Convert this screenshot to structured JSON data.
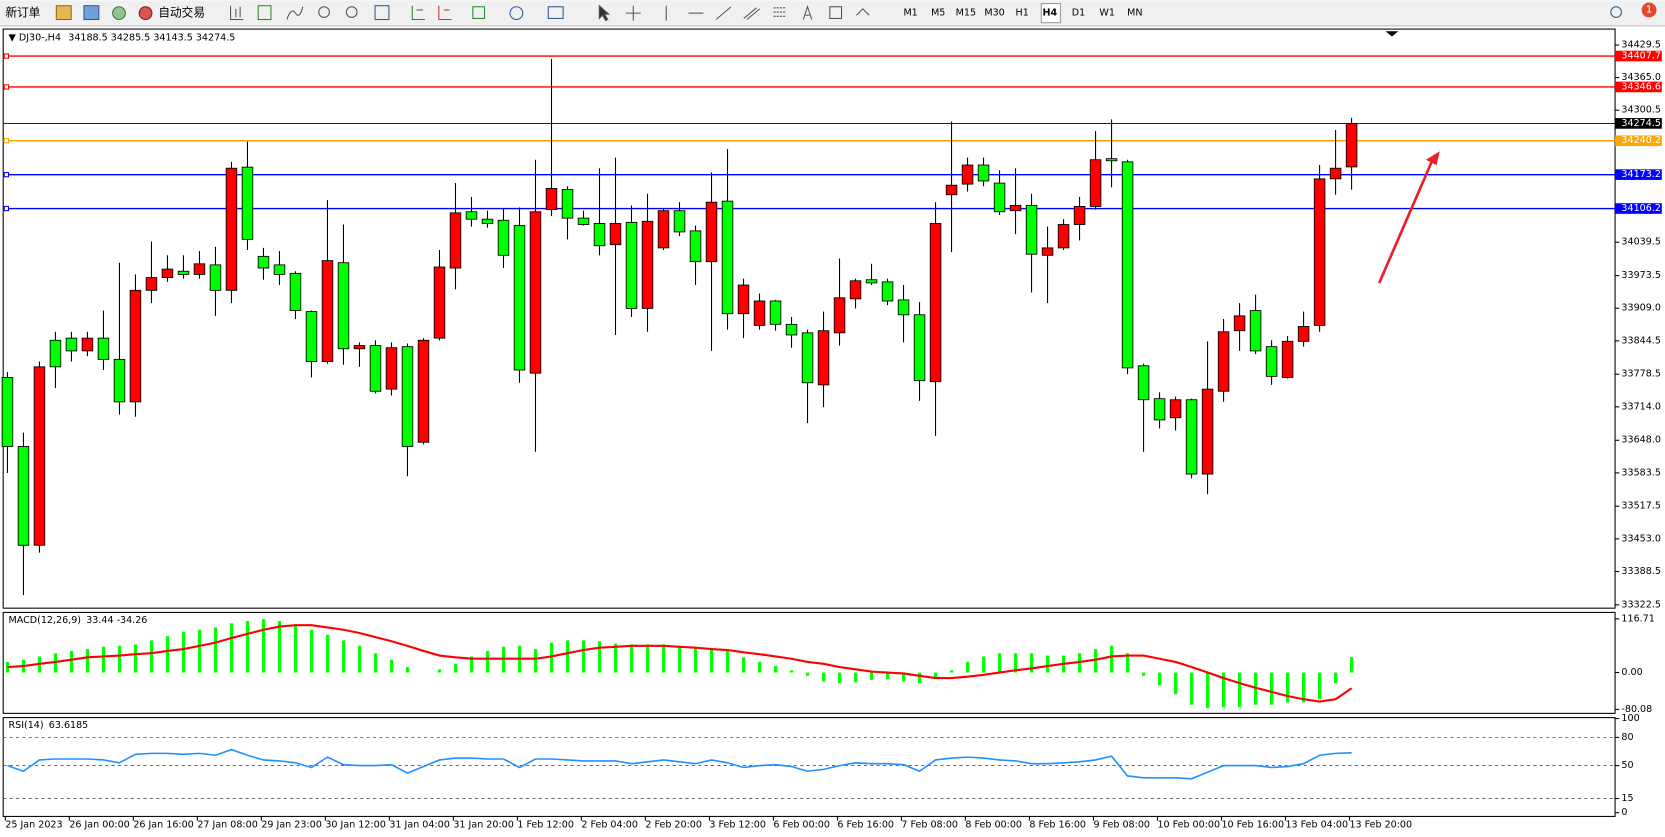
{
  "toolbar": {
    "new_order": "新订单",
    "auto_trading": "自动交易",
    "timeframes": [
      "M1",
      "M5",
      "M15",
      "M30",
      "H1",
      "H4",
      "D1",
      "W1",
      "MN"
    ],
    "active_timeframe": "H4",
    "notification_count": 1
  },
  "chart_data": [
    {
      "type": "candlestick",
      "title": "DJ30-,H4",
      "up_color": "#ff0000",
      "down_color": "#00ff00",
      "categories": [
        "25 Jan 2023",
        null,
        null,
        null,
        "26 Jan 00:00",
        null,
        null,
        null,
        "26 Jan 16:00",
        null,
        null,
        null,
        "27 Jan 08:00",
        null,
        null,
        null,
        "29 Jan 23:00",
        null,
        null,
        null,
        "30 Jan 12:00",
        null,
        null,
        null,
        "31 Jan 04:00",
        null,
        null,
        null,
        "31 Jan 20:00",
        null,
        null,
        null,
        "1 Feb 12:00",
        null,
        null,
        null,
        "2 Feb 04:00",
        null,
        null,
        null,
        "2 Feb 20:00",
        null,
        null,
        null,
        "3 Feb 12:00",
        null,
        null,
        null,
        "6 Feb 00:00",
        null,
        null,
        null,
        "6 Feb 16:00",
        null,
        null,
        null,
        "7 Feb 08:00",
        null,
        null,
        null,
        "8 Feb 00:00",
        null,
        null,
        null,
        "8 Feb 16:00",
        null,
        null,
        null,
        "9 Feb 08:00",
        null,
        null,
        null,
        "10 Feb 00:00",
        null,
        null,
        null,
        "10 Feb 16:00",
        null,
        null,
        null,
        "13 Feb 04:00",
        null,
        null,
        null,
        "13 Feb 20:00"
      ],
      "open": [
        33772.2,
        33635.7,
        33440.4,
        33845.7,
        33849.9,
        33824.7,
        33849.9,
        33807.9,
        33723.9,
        33944.4,
        33969.6,
        33982.2,
        33975.9,
        33994.8,
        33944.4,
        34188.0,
        34011.6,
        33994.8,
        33978.0,
        33902.4,
        33803.7,
        33999.0,
        33828.9,
        33835.2,
        33749.1,
        33833.1,
        33644.1,
        33849.9,
        33988.5,
        34099.8,
        34085.1,
        34083.0,
        34072.5,
        33780.6,
        34104.0,
        34143.9,
        34087.2,
        34076.7,
        34034.7,
        34078.8,
        33908.7,
        34028.4,
        34101.9,
        34062.0,
        34001.1,
        34120.8,
        33898.2,
        33875.1,
        33923.4,
        33877.2,
        33860.4,
        33757.5,
        33860.4,
        33927.6,
        33965.4,
        33961.2,
        33925.5,
        33896.1,
        33763.8,
        34133.4,
        34154.4,
        34192.2,
        34156.5,
        34101.9,
        34112.4,
        34013.7,
        34028.4,
        34074.6,
        34110.3,
        34204.8,
        34198.5,
        33795.3,
        33730.2,
        33692.4,
        33728.1,
        33581.1,
        33744.9,
        33864.6,
        33904.5,
        33833.1,
        33772.2,
        33843.6,
        33875.1,
        34164.9,
        34188.5
      ],
      "high": [
        33782.7,
        33663.0,
        33803.7,
        33862.5,
        33862.5,
        33862.5,
        33904.5,
        33999.0,
        33975.9,
        34041.0,
        34013.7,
        34013.7,
        34022.1,
        34030.5,
        34198.5,
        34238.4,
        34028.4,
        34022.1,
        33982.2,
        33904.5,
        34122.9,
        34074.6,
        33841.5,
        33845.7,
        33841.5,
        33839.4,
        33849.9,
        34024.2,
        34156.5,
        34129.2,
        34101.9,
        34106.1,
        34108.2,
        34202.7,
        34402.2,
        34150.2,
        34101.9,
        34185.9,
        34206.9,
        34112.4,
        34135.5,
        34106.1,
        34118.7,
        34072.5,
        34177.5,
        34223.7,
        33967.5,
        33938.1,
        33925.5,
        33891.9,
        33866.7,
        33902.4,
        34007.4,
        33967.5,
        33996.9,
        33967.5,
        33954.9,
        33921.3,
        34118.7,
        34278.3,
        34206.9,
        34206.9,
        34181.7,
        34185.9,
        34135.5,
        34070.4,
        34085.1,
        34129.2,
        34259.4,
        34282.5,
        34202.7,
        33799.5,
        33742.8,
        33734.4,
        33730.2,
        33843.6,
        33887.7,
        33919.2,
        33936.0,
        33845.7,
        33854.1,
        33902.4,
        34192.2,
        34261.5,
        34285.5
      ],
      "low": [
        33583.2,
        33341.7,
        33425.7,
        33751.2,
        33803.7,
        33814.2,
        33786.9,
        33698.7,
        33694.5,
        33919.2,
        33961.2,
        33967.5,
        33967.5,
        33894.0,
        33919.2,
        34024.2,
        33965.4,
        33954.9,
        33887.7,
        33772.2,
        33799.5,
        33797.4,
        33793.2,
        33740.7,
        33736.5,
        33576.9,
        33639.9,
        33845.7,
        33946.5,
        34070.4,
        34068.3,
        33988.5,
        33761.7,
        33625.2,
        34091.4,
        34045.2,
        34072.5,
        34013.7,
        33856.2,
        33891.9,
        33862.5,
        34024.2,
        34051.5,
        33954.9,
        33824.7,
        33866.7,
        33849.9,
        33866.7,
        33864.6,
        33831.0,
        33681.9,
        33713.4,
        33835.2,
        33908.7,
        33954.9,
        33915.0,
        33841.5,
        33726.0,
        33656.7,
        34020.0,
        34139.7,
        34150.2,
        34093.5,
        34055.7,
        33940.2,
        33919.2,
        34024.2,
        34043.1,
        34104.0,
        34148.1,
        33778.5,
        33625.2,
        33671.4,
        33667.2,
        33572.7,
        33541.2,
        33723.9,
        33824.7,
        33818.4,
        33757.5,
        33770.1,
        33833.1,
        33862.5,
        34133.4,
        34143.5
      ],
      "close": [
        33635.7,
        33440.4,
        33793.2,
        33793.2,
        33824.7,
        33849.9,
        33807.9,
        33723.9,
        33944.4,
        33969.6,
        33986.4,
        33975.9,
        33996.9,
        33944.4,
        34185.9,
        34045.2,
        33988.5,
        33975.9,
        33904.5,
        33803.7,
        34003.2,
        33828.9,
        33835.2,
        33744.9,
        33831.0,
        33635.7,
        33845.7,
        33990.6,
        34097.7,
        34085.1,
        34076.7,
        34013.7,
        33786.9,
        34099.8,
        34146.0,
        34087.2,
        34074.6,
        34032.6,
        34076.7,
        33908.7,
        34080.9,
        34101.9,
        34059.9,
        34001.1,
        34118.7,
        33898.2,
        33954.9,
        33923.4,
        33877.2,
        33856.2,
        33761.7,
        33864.6,
        33929.7,
        33963.3,
        33959.1,
        33923.4,
        33896.1,
        33765.9,
        34076.7,
        34152.3,
        34192.2,
        34160.7,
        34099.8,
        34112.4,
        34015.8,
        34028.4,
        34074.6,
        34110.3,
        34202.7,
        34200.6,
        33791.1,
        33728.1,
        33688.2,
        33728.1,
        33581.1,
        33749.1,
        33862.5,
        33894.0,
        33824.7,
        33774.3,
        33843.6,
        33873.0,
        34164.9,
        34185.9,
        34274.5
      ],
      "ylim": [
        33316,
        34461
      ],
      "yticks": [
        34429.5,
        {
          "value": 34365,
          "label": "34365.0"
        },
        34300.5,
        34039.5,
        33973.5,
        {
          "value": 33909,
          "label": "33909.0"
        },
        33844.5,
        33778.5,
        {
          "value": 33714,
          "label": "33714.0"
        },
        {
          "value": 33648,
          "label": "33648.0"
        },
        33583.5,
        33517.5,
        {
          "value": 33453,
          "label": "33453.0"
        },
        33388.5,
        33322.5
      ],
      "hlines": [
        {
          "value": 34407.7,
          "color": "#ff0000"
        },
        {
          "value": 34346.6,
          "color": "#ff0000"
        },
        {
          "value": 34240.2,
          "color": "#ffa500"
        },
        {
          "value": 34173.2,
          "color": "#0000ff"
        },
        {
          "value": 34106.2,
          "color": "#0000ff"
        }
      ]
    },
    {
      "type": "macd",
      "title": "MACD(12,26,9)",
      "histogram_color": "#00ff00",
      "signal_color": "#ff0000",
      "histogram": [
        23,
        28,
        35,
        42,
        47,
        51,
        56,
        58,
        61,
        70,
        79,
        89,
        93,
        98,
        107,
        112,
        116,
        112,
        105,
        93,
        82,
        70,
        58,
        42,
        28,
        12,
        0,
        7,
        19,
        35,
        47,
        56,
        58,
        51,
        65,
        70,
        70,
        68,
        63,
        61,
        61,
        61,
        58,
        56,
        54,
        47,
        33,
        23,
        14,
        5,
        -7,
        -19,
        -23,
        -21,
        -16,
        -14,
        -19,
        -23,
        -14,
        5,
        23,
        35,
        42,
        42,
        42,
        37,
        37,
        42,
        51,
        58,
        42,
        -7,
        -28,
        -47,
        -70,
        -77,
        -75,
        -75,
        -70,
        -70,
        -65,
        -65,
        -58,
        -23,
        33.44
      ],
      "signal": [
        12,
        14,
        19,
        23,
        28,
        33,
        35,
        37,
        40,
        42,
        47,
        51,
        58,
        65,
        75,
        84,
        93,
        100,
        103,
        103,
        98,
        93,
        86,
        77,
        68,
        58,
        47,
        37,
        33,
        30,
        30,
        30,
        30,
        30,
        35,
        42,
        49,
        54,
        56,
        58,
        58,
        58,
        56,
        54,
        51,
        49,
        44,
        40,
        35,
        30,
        23,
        19,
        12,
        7,
        2,
        0,
        -2,
        -7,
        -12,
        -12,
        -9,
        -5,
        0,
        5,
        9,
        14,
        19,
        23,
        28,
        35,
        37,
        37,
        30,
        23,
        12,
        0,
        -12,
        -23,
        -33,
        -42,
        -51,
        -58,
        -63,
        -58,
        -34.26
      ],
      "ylim": [
        -88.7,
        130.7
      ],
      "yticks": [
        116.71,
        {
          "value": 0,
          "label": "0.00"
        },
        -80.08
      ]
    },
    {
      "type": "rsi",
      "title": "RSI(14)",
      "color": "#1e90ff",
      "values": [
        50,
        44,
        56,
        57,
        57,
        57,
        56,
        53,
        62,
        63,
        63,
        62,
        63,
        61,
        67,
        61,
        56,
        55,
        53,
        48,
        59,
        51,
        50,
        50,
        51,
        42,
        49,
        56,
        58,
        58,
        57,
        57,
        48,
        57,
        57,
        56,
        55,
        55,
        55,
        52,
        54,
        56,
        54,
        52,
        56,
        53,
        48,
        50,
        51,
        49,
        44,
        46,
        50,
        53,
        52,
        52,
        51,
        44,
        56,
        58,
        59,
        58,
        56,
        55,
        52,
        52,
        53,
        54,
        56,
        60,
        39,
        37,
        37,
        37,
        36,
        43,
        50,
        50,
        50,
        48,
        49,
        52,
        61,
        63,
        63.6185
      ],
      "ylim": [
        -4,
        101
      ],
      "yticks": [
        100,
        80,
        50,
        15,
        0
      ],
      "levels": [
        80,
        50,
        15
      ]
    }
  ]
}
